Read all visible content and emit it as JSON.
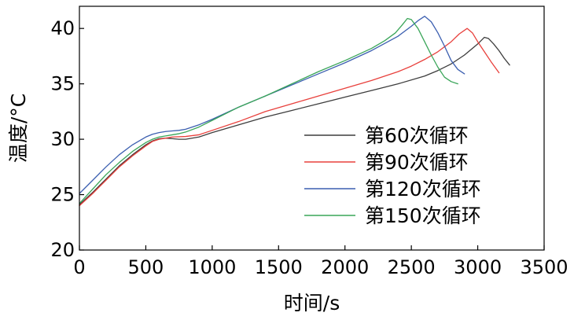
{
  "chart_data": {
    "type": "line",
    "title": "",
    "xlabel": "时间/s",
    "ylabel": "温度/°C",
    "xlim": [
      0,
      3500
    ],
    "ylim": [
      20,
      42
    ],
    "xticks": [
      0,
      500,
      1000,
      1500,
      2000,
      2500,
      3000,
      3500
    ],
    "yticks": [
      20,
      25,
      30,
      35,
      40
    ],
    "grid": false,
    "legend_position": "center-right",
    "series": [
      {
        "name": "第60次循环",
        "color": "#3d3d3d",
        "x": [
          0,
          100,
          200,
          300,
          400,
          500,
          550,
          600,
          650,
          700,
          750,
          800,
          900,
          1000,
          1200,
          1400,
          1600,
          1800,
          2000,
          2200,
          2400,
          2600,
          2700,
          2800,
          2900,
          3000,
          3050,
          3080,
          3120,
          3160,
          3200,
          3240
        ],
        "y": [
          24.1,
          25.2,
          26.4,
          27.6,
          28.6,
          29.5,
          29.85,
          30.05,
          30.1,
          30.05,
          30.0,
          30.0,
          30.2,
          30.6,
          31.3,
          32.0,
          32.6,
          33.2,
          33.8,
          34.4,
          35.0,
          35.7,
          36.2,
          36.8,
          37.6,
          38.6,
          39.2,
          39.1,
          38.6,
          38.0,
          37.3,
          36.7
        ]
      },
      {
        "name": "第90次循环",
        "color": "#e8403c",
        "x": [
          0,
          100,
          200,
          300,
          400,
          500,
          550,
          600,
          650,
          700,
          800,
          900,
          1000,
          1200,
          1400,
          1600,
          1800,
          2000,
          2200,
          2400,
          2500,
          2600,
          2700,
          2800,
          2860,
          2920,
          2960,
          3000,
          3050,
          3100,
          3160
        ],
        "y": [
          24.0,
          25.1,
          26.3,
          27.5,
          28.5,
          29.4,
          29.8,
          30.0,
          30.1,
          30.2,
          30.25,
          30.4,
          30.8,
          31.6,
          32.5,
          33.2,
          33.9,
          34.6,
          35.3,
          36.1,
          36.6,
          37.2,
          37.9,
          38.8,
          39.5,
          40.0,
          39.6,
          38.8,
          37.9,
          37.0,
          36.0
        ]
      },
      {
        "name": "第120次循环",
        "color": "#3c5fb0",
        "x": [
          0,
          100,
          200,
          300,
          400,
          500,
          550,
          600,
          650,
          700,
          750,
          800,
          900,
          1000,
          1200,
          1400,
          1600,
          1800,
          2000,
          2200,
          2400,
          2500,
          2550,
          2600,
          2650,
          2700,
          2750,
          2800,
          2850,
          2900
        ],
        "y": [
          25.1,
          26.3,
          27.5,
          28.6,
          29.5,
          30.2,
          30.45,
          30.6,
          30.7,
          30.75,
          30.8,
          30.9,
          31.3,
          31.8,
          32.9,
          33.9,
          34.9,
          35.9,
          36.9,
          38.0,
          39.3,
          40.2,
          40.7,
          41.1,
          40.6,
          39.6,
          38.4,
          37.1,
          36.3,
          35.9
        ]
      },
      {
        "name": "第150次循环",
        "color": "#3aa559",
        "x": [
          0,
          100,
          200,
          300,
          400,
          500,
          550,
          600,
          650,
          700,
          750,
          800,
          900,
          1000,
          1200,
          1400,
          1600,
          1800,
          2000,
          2200,
          2300,
          2380,
          2430,
          2470,
          2500,
          2550,
          2600,
          2650,
          2700,
          2750,
          2800,
          2850
        ],
        "y": [
          24.2,
          25.5,
          26.8,
          27.9,
          28.9,
          29.7,
          30.0,
          30.2,
          30.3,
          30.4,
          30.5,
          30.65,
          31.1,
          31.7,
          32.9,
          33.9,
          35.0,
          36.1,
          37.1,
          38.2,
          38.9,
          39.6,
          40.3,
          40.9,
          40.8,
          40.0,
          38.8,
          37.6,
          36.5,
          35.6,
          35.2,
          35.0
        ]
      }
    ]
  }
}
